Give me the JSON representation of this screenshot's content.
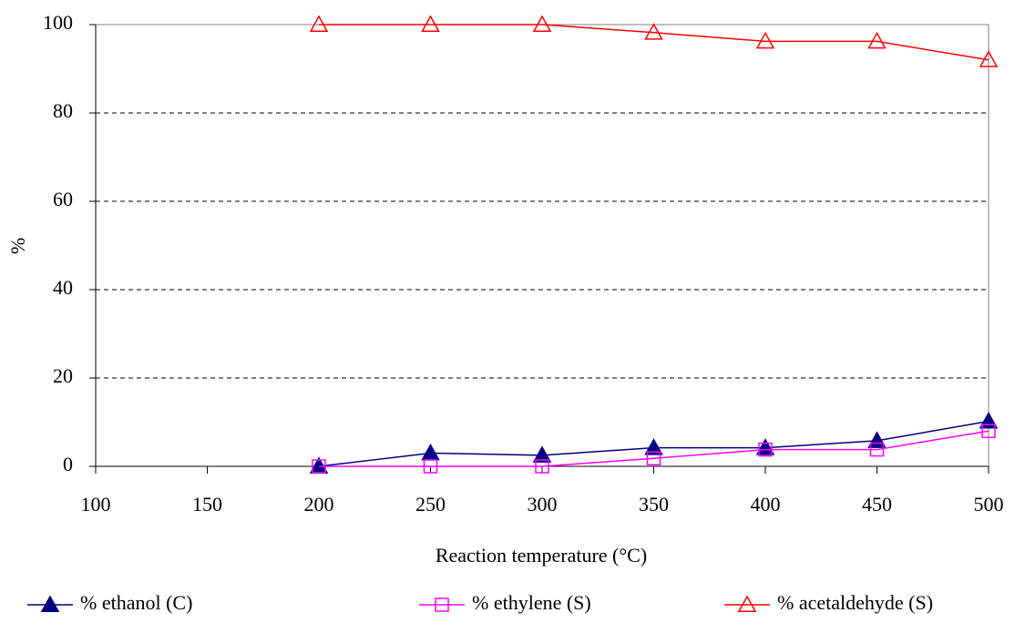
{
  "chart_data": {
    "type": "line",
    "x_label": "Reaction temperature (°C)",
    "y_label": "%",
    "x": [
      200,
      250,
      300,
      350,
      400,
      450,
      500
    ],
    "series": [
      {
        "name": "% ethanol (C)",
        "color": "#000080",
        "marker": "triangle-filled",
        "values": [
          0,
          3,
          2.5,
          4.2,
          4.2,
          5.8,
          10.2
        ]
      },
      {
        "name": "% ethylene (S)",
        "color": "#ff00ff",
        "marker": "square-open",
        "values": [
          0,
          0,
          0,
          1.8,
          3.8,
          3.8,
          8
        ]
      },
      {
        "name": "% acetaldehyde (S)",
        "color": "#ff0000",
        "marker": "triangle-open",
        "values": [
          100,
          100,
          100,
          98.2,
          96.2,
          96.2,
          92
        ]
      }
    ],
    "xlim": [
      100,
      500
    ],
    "xticks": [
      100,
      150,
      200,
      250,
      300,
      350,
      400,
      450,
      500
    ],
    "ylim": [
      0,
      100
    ],
    "yticks": [
      0,
      20,
      40,
      60,
      80,
      100
    ],
    "grid": true,
    "legend": "bottom"
  }
}
